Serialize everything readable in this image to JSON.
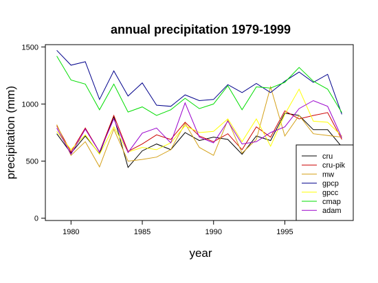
{
  "chart_data": {
    "type": "line",
    "title": "annual precipitation 1979-1999",
    "xlabel": "year",
    "ylabel": "precipitation (mm)",
    "xlim": [
      1978.2,
      1999.8
    ],
    "ylim": [
      -20,
      1520
    ],
    "xticks": [
      1980,
      1985,
      1990,
      1995
    ],
    "yticks": [
      0,
      500,
      1000,
      1500
    ],
    "grid": false,
    "legend_position": "bottom-right",
    "x": [
      1979,
      1980,
      1981,
      1982,
      1983,
      1984,
      1985,
      1986,
      1987,
      1988,
      1989,
      1990,
      1991,
      1992,
      1993,
      1994,
      1995,
      1996,
      1997,
      1998,
      1999
    ],
    "series": [
      {
        "name": "cru",
        "color": "#000000",
        "values": [
          740,
          570,
          720,
          565,
          890,
          445,
          590,
          650,
          600,
          750,
          680,
          710,
          690,
          560,
          720,
          680,
          920,
          900,
          775,
          775,
          625
        ]
      },
      {
        "name": "cru-pik",
        "color": "#cc0000",
        "values": [
          810,
          580,
          790,
          580,
          900,
          585,
          650,
          730,
          690,
          840,
          720,
          670,
          740,
          600,
          800,
          710,
          940,
          870,
          900,
          925,
          690
        ]
      },
      {
        "name": "mw",
        "color": "#d4a017",
        "values": [
          820,
          550,
          670,
          450,
          780,
          500,
          515,
          535,
          600,
          830,
          620,
          550,
          860,
          570,
          690,
          1150,
          720,
          900,
          740,
          725,
          710
        ]
      },
      {
        "name": "gpcp",
        "color": "#00008b",
        "values": [
          1470,
          1340,
          1370,
          1040,
          1290,
          1070,
          1185,
          990,
          980,
          1080,
          1030,
          1040,
          1170,
          1100,
          1180,
          1100,
          1200,
          1280,
          1190,
          1260,
          910
        ]
      },
      {
        "name": "gpcc",
        "color": "#ffff00",
        "values": [
          760,
          600,
          730,
          560,
          800,
          580,
          620,
          600,
          660,
          810,
          750,
          760,
          870,
          670,
          870,
          630,
          910,
          1130,
          850,
          840,
          720
        ]
      },
      {
        "name": "cmap",
        "color": "#00dd00",
        "values": [
          1420,
          1210,
          1175,
          950,
          1175,
          930,
          975,
          900,
          950,
          1050,
          960,
          1000,
          1160,
          950,
          1150,
          1140,
          1190,
          1320,
          1200,
          1130,
          925
        ]
      },
      {
        "name": "adam",
        "color": "#9900cc",
        "values": [
          790,
          560,
          780,
          580,
          870,
          575,
          745,
          790,
          660,
          1010,
          710,
          660,
          850,
          650,
          670,
          750,
          800,
          960,
          1030,
          980,
          705
        ]
      }
    ]
  }
}
